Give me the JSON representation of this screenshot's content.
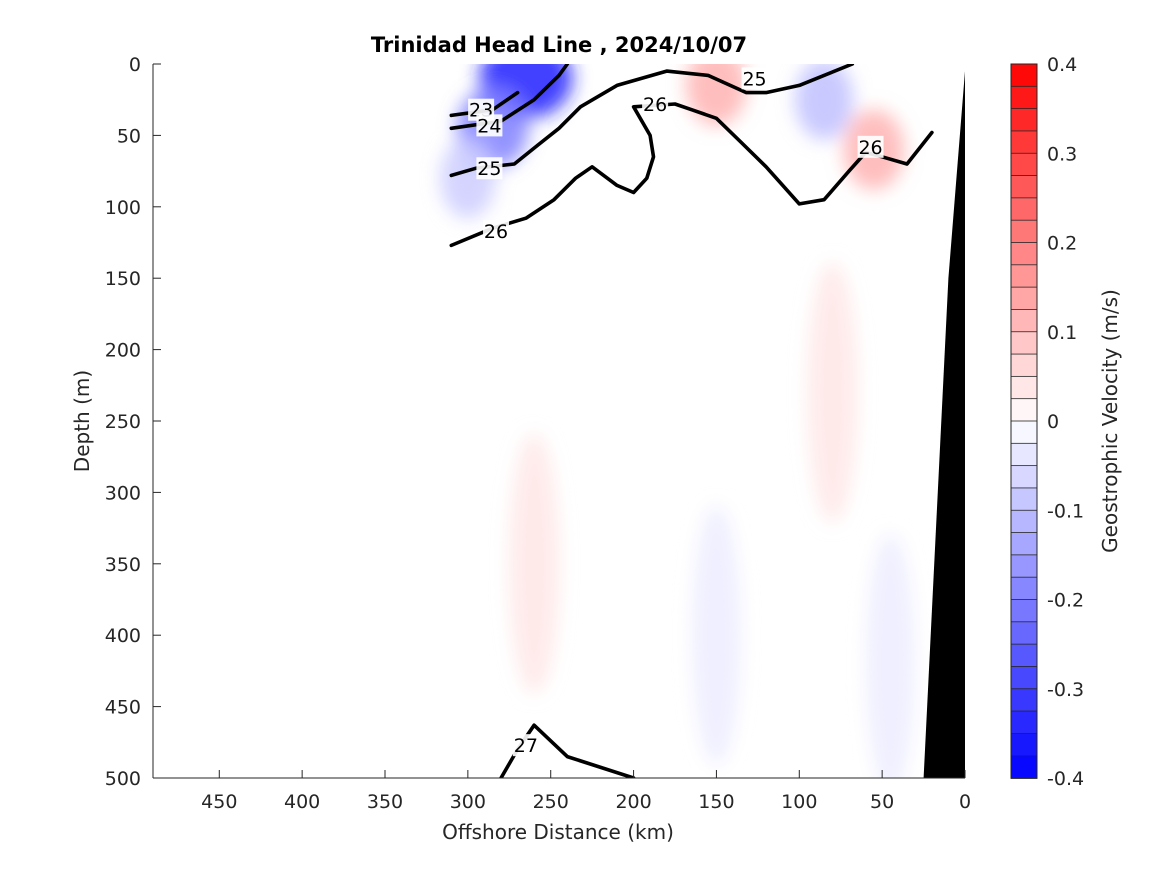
{
  "chart_data": {
    "type": "contour",
    "title": "Trinidad Head Line , 2024/10/07",
    "xlabel": "Offshore Distance (km)",
    "ylabel": "Depth (m)",
    "xlim": [
      490,
      0
    ],
    "ylim": [
      0,
      500
    ],
    "x_reversed": true,
    "y_reversed": true,
    "xticks": [
      450,
      400,
      350,
      300,
      250,
      200,
      150,
      100,
      50,
      0
    ],
    "yticks": [
      0,
      50,
      100,
      150,
      200,
      250,
      300,
      350,
      400,
      450,
      500
    ],
    "grid": false,
    "colorbar": {
      "label": "Geostrophic Velocity (m/s)",
      "min": -0.4,
      "max": 0.4,
      "ticks": [
        0.4,
        0.3,
        0.2,
        0.1,
        0,
        -0.1,
        -0.2,
        -0.3,
        -0.4
      ],
      "levels": 32,
      "colors": {
        "positive": "#ff0000",
        "zero": "#ffffff",
        "negative": "#0000ff"
      }
    },
    "velocity_patches": [
      {
        "label": "nearshore southward jet core",
        "x": 265,
        "y": 10,
        "v": -0.35
      },
      {
        "label": "upper southward shear band",
        "x": 285,
        "y": 45,
        "v": -0.2
      },
      {
        "label": "offshore southward tail",
        "x": 300,
        "y": 80,
        "v": -0.08
      },
      {
        "label": "near-surface northward flow",
        "x": 150,
        "y": 15,
        "v": 0.12
      },
      {
        "label": "southward eddy",
        "x": 85,
        "y": 25,
        "v": -0.1
      },
      {
        "label": "northward band near 50 km",
        "x": 55,
        "y": 60,
        "v": 0.12
      },
      {
        "label": "weak northward column",
        "x": 260,
        "y": 350,
        "v": 0.04
      },
      {
        "label": "weak northward column",
        "x": 80,
        "y": 230,
        "v": 0.04
      },
      {
        "label": "weak southward column",
        "x": 150,
        "y": 400,
        "v": -0.03
      },
      {
        "label": "weak southward column",
        "x": 45,
        "y": 420,
        "v": -0.03
      }
    ],
    "density_contours": [
      {
        "sigma": 23,
        "labeled": true,
        "x": [
          310,
          285,
          270
        ],
        "y": [
          36,
          32,
          20
        ]
      },
      {
        "sigma": 24,
        "labeled": true,
        "x": [
          310,
          280,
          260,
          245,
          240
        ],
        "y": [
          45,
          40,
          25,
          8,
          0
        ]
      },
      {
        "sigma": 25,
        "labeled": true,
        "x": [
          310,
          295,
          272,
          258,
          245,
          232,
          210,
          180,
          155,
          132,
          120,
          100,
          68
        ],
        "y": [
          78,
          73,
          70,
          57,
          45,
          30,
          15,
          5,
          8,
          20,
          20,
          15,
          0
        ]
      },
      {
        "sigma": 26,
        "labeled": true,
        "x": [
          310,
          285,
          265,
          248,
          235,
          225,
          210,
          200,
          192,
          188,
          190,
          200,
          175,
          165,
          150,
          135,
          120,
          100,
          85,
          70,
          60,
          50,
          35,
          20
        ],
        "y": [
          127,
          115,
          108,
          95,
          80,
          72,
          85,
          90,
          80,
          65,
          50,
          30,
          28,
          32,
          38,
          55,
          72,
          98,
          95,
          75,
          62,
          65,
          70,
          48
        ]
      },
      {
        "sigma": 27,
        "labeled": true,
        "x": [
          280,
          270,
          260,
          240,
          200
        ],
        "y": [
          500,
          480,
          463,
          485,
          500
        ]
      }
    ],
    "label_positions": [
      {
        "text": "23",
        "x": 292,
        "y": 32
      },
      {
        "text": "24",
        "x": 287,
        "y": 43
      },
      {
        "text": "25",
        "x": 287,
        "y": 73
      },
      {
        "text": "25",
        "x": 127,
        "y": 10
      },
      {
        "text": "26",
        "x": 283,
        "y": 117
      },
      {
        "text": "26",
        "x": 187,
        "y": 28
      },
      {
        "text": "26",
        "x": 57,
        "y": 58
      },
      {
        "text": "27",
        "x": 265,
        "y": 477
      }
    ],
    "topography": {
      "x": [
        0,
        0,
        10,
        25
      ],
      "y": [
        500,
        5,
        150,
        500
      ]
    }
  }
}
